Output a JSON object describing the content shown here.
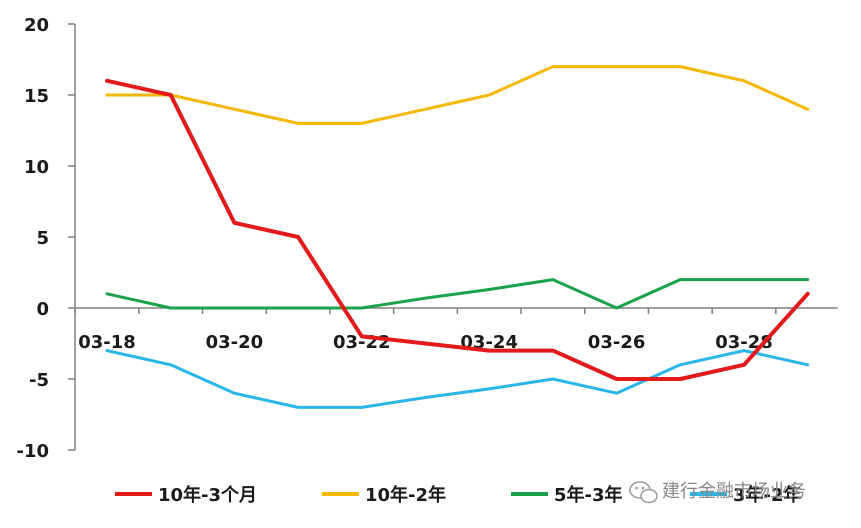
{
  "chart_data": {
    "type": "line",
    "title": "",
    "xlabel": "",
    "ylabel": "",
    "x": [
      "03-18",
      "03-19",
      "03-20",
      "03-21",
      "03-22",
      "03-23",
      "03-24",
      "03-25",
      "03-26",
      "03-27",
      "03-28",
      "03-29"
    ],
    "x_tick_labels": [
      "03-18",
      "03-20",
      "03-22",
      "03-24",
      "03-26",
      "03-28"
    ],
    "ylim": [
      -10,
      20
    ],
    "y_ticks": [
      -10,
      -5,
      0,
      5,
      10,
      15,
      20
    ],
    "grid": false,
    "legend_position": "bottom",
    "series": [
      {
        "name": "10年-3个月",
        "color": "#e31a1c",
        "values": [
          16,
          15,
          6,
          5,
          -2,
          -2.5,
          -3,
          -3,
          -5,
          -5,
          -4,
          1
        ]
      },
      {
        "name": "10年-2年",
        "color": "#f5b800",
        "values": [
          15,
          15,
          14,
          13,
          13,
          14,
          15,
          17,
          17,
          17,
          16,
          14
        ]
      },
      {
        "name": "5年-3年",
        "color": "#1aa34a",
        "values": [
          1,
          0,
          0,
          0,
          0,
          0.7,
          1.3,
          2,
          0,
          2,
          2,
          2
        ]
      },
      {
        "name": "3年-2年",
        "color": "#29b6e8",
        "values": [
          -3,
          -4,
          -6,
          -7,
          -7,
          -6.3,
          -5.7,
          -5,
          -6,
          -4,
          -3,
          -4
        ]
      }
    ]
  },
  "watermark": {
    "text": "建行金融市场业务",
    "icon": "wechat-icon"
  }
}
